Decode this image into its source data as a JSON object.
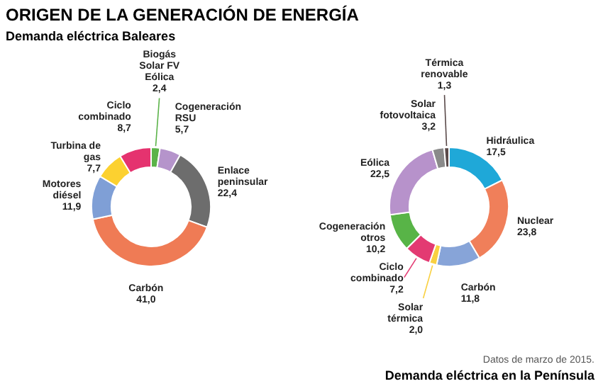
{
  "chart_data": [
    {
      "type": "donut",
      "title": "ORIGEN DE LA GENERACIÓN DE ENERGÍA",
      "subtitle": "Demanda eléctrica Baleares",
      "categories": [
        "Biogás Solar FV Eólica",
        "Cogeneración RSU",
        "Enlace peninsular",
        "Carbón",
        "Motores diésel",
        "Turbina de gas",
        "Ciclo combinado"
      ],
      "values": [
        2.4,
        5.7,
        22.4,
        41.0,
        11.9,
        7.7,
        8.7
      ],
      "value_labels": [
        "2,4",
        "5,7",
        "22,4",
        "41,0",
        "11,9",
        "7,7",
        "8,7"
      ],
      "colors": [
        "#5bb349",
        "#b594cb",
        "#6d6d6d",
        "#ef7b55",
        "#7f9fd6",
        "#fcd130",
        "#e5336f"
      ]
    },
    {
      "type": "donut",
      "title": "Demanda eléctrica en la Península",
      "annotations": [
        "Datos de marzo de 2015."
      ],
      "categories": [
        "Hidráulica",
        "Nuclear",
        "Carbón",
        "Solar térmica",
        "Ciclo combinado",
        "Cogeneración otros",
        "Eólica",
        "Solar fotovoltaica",
        "Térmica renovable"
      ],
      "values": [
        17.5,
        23.8,
        11.8,
        2.0,
        7.2,
        10.2,
        22.5,
        3.2,
        1.3
      ],
      "value_labels": [
        "17,5",
        "23,8",
        "11,8",
        "2,0",
        "7,2",
        "10,2",
        "22,5",
        "3,2",
        "1,3"
      ],
      "colors": [
        "#1fa8d8",
        "#f07f5a",
        "#87a4d8",
        "#f9d040",
        "#e33a72",
        "#58b447",
        "#b792cb",
        "#8a8a8a",
        "#5a4a4a"
      ]
    }
  ]
}
